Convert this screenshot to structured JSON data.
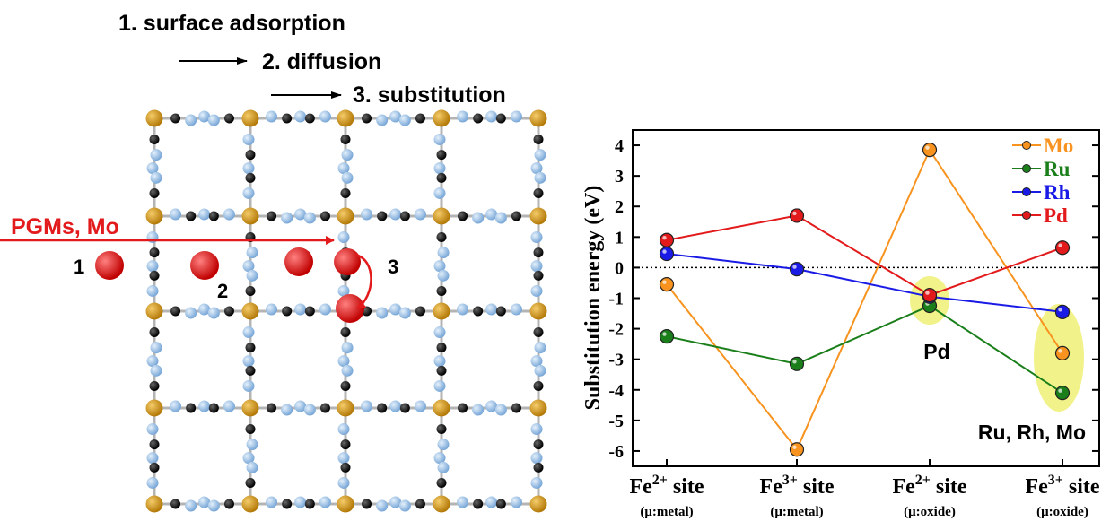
{
  "steps": {
    "step1": "1. surface adsorption",
    "step2": "2. diffusion",
    "step3": "3. substitution"
  },
  "lattice": {
    "arrow_label": "PGMs, Mo",
    "position_labels": [
      "1",
      "2",
      "3"
    ],
    "colors": {
      "fe_atom": "#c8900e",
      "o_atom": "#9cc3e8",
      "black_atom": "#111111",
      "pgm_atom": "#e31a1c",
      "bond": "#b4b4b4"
    }
  },
  "chart_data": {
    "type": "line",
    "ylabel": "Substitution energy (eV)",
    "ylim": [
      -6.5,
      4.5
    ],
    "yticks": [
      4,
      3,
      2,
      1,
      0,
      -1,
      -2,
      -3,
      -4,
      -5,
      -6
    ],
    "categories": [
      {
        "main": "Fe",
        "sup": "2+",
        "suffix": " site",
        "sub": "(μ:metal)"
      },
      {
        "main": "Fe",
        "sup": "3+",
        "suffix": " site",
        "sub": "(μ:metal)"
      },
      {
        "main": "Fe",
        "sup": "2+",
        "suffix": " site",
        "sub": "(μ:oxide)"
      },
      {
        "main": "Fe",
        "sup": "3+",
        "suffix": " site",
        "sub": "(μ:oxide)"
      }
    ],
    "series": [
      {
        "name": "Mo",
        "color": "#f7931e",
        "values": [
          -0.55,
          -5.95,
          3.85,
          -2.8
        ]
      },
      {
        "name": "Ru",
        "color": "#1a7f1a",
        "values": [
          -2.25,
          -3.15,
          -1.25,
          -4.1
        ]
      },
      {
        "name": "Rh",
        "color": "#1a1ae6",
        "values": [
          0.45,
          -0.05,
          -0.95,
          -1.45
        ]
      },
      {
        "name": "Pd",
        "color": "#e31a1c",
        "values": [
          0.9,
          1.7,
          -0.9,
          0.65
        ]
      }
    ],
    "zero_line": "dotted",
    "legend_position": "top-right",
    "annotations": [
      {
        "text": "Pd"
      },
      {
        "text": "Ru, Rh, Mo"
      }
    ],
    "highlight_color": "#f2f28a"
  }
}
